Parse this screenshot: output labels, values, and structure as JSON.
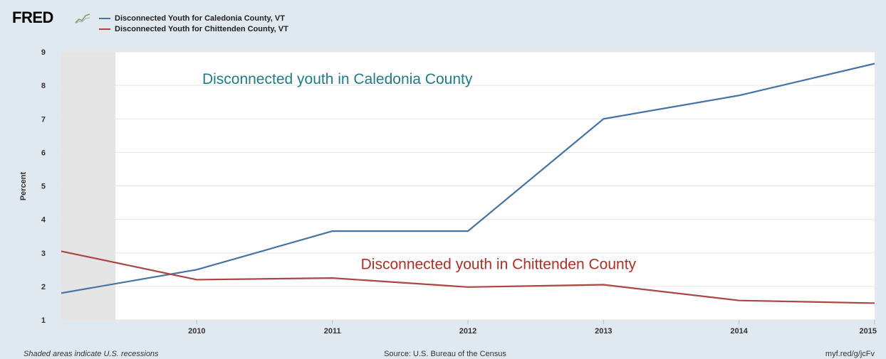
{
  "brand": {
    "name": "FRED"
  },
  "footer": {
    "recession_note": "Shaded areas indicate U.S. recessions",
    "source": "Source: U.S. Bureau of the Census",
    "short_url": "myf.red/g/jcFv"
  },
  "chart_data": {
    "type": "line",
    "ylabel": "Percent",
    "xlabel": "",
    "ylim": [
      1,
      9
    ],
    "xlim": [
      2009,
      2015
    ],
    "yticks": [
      1,
      2,
      3,
      4,
      5,
      6,
      7,
      8,
      9
    ],
    "xticks": [
      2010,
      2011,
      2012,
      2013,
      2014,
      2015
    ],
    "grid": true,
    "legend_position": "top-left",
    "recession_shading": {
      "start": 2009,
      "end": 2009.4
    },
    "series": [
      {
        "name": "Disconnected Youth for Caledonia County, VT",
        "color": "#4572a7",
        "x": [
          2009,
          2010,
          2011,
          2012,
          2013,
          2014,
          2015
        ],
        "y": [
          1.8,
          2.5,
          3.65,
          3.65,
          7.0,
          7.7,
          8.65
        ]
      },
      {
        "name": "Disconnected Youth for Chittenden County, VT",
        "color": "#aa4643",
        "x": [
          2009,
          2010,
          2011,
          2012,
          2013,
          2014,
          2015
        ],
        "y": [
          3.05,
          2.2,
          2.25,
          1.98,
          2.05,
          1.58,
          1.5
        ]
      }
    ],
    "annotations": [
      {
        "text": "Disconnected youth in Caledonia County",
        "color": "#1f7a8c",
        "anchor_x": 2010.04,
        "anchor_y": 8.05
      },
      {
        "text": "Disconnected youth in Chittenden County",
        "color": "#b32d25",
        "anchor_x": 2011.21,
        "anchor_y": 2.52
      }
    ]
  }
}
